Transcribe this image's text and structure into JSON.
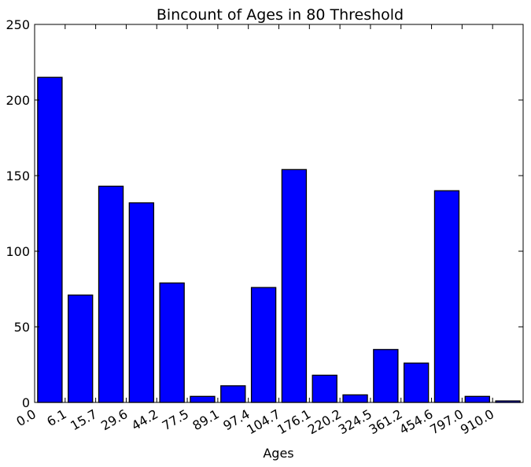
{
  "chart_data": {
    "type": "bar",
    "title": "Bincount of Ages in 80 Threshold",
    "xlabel": "Ages",
    "ylabel": "",
    "ylim": [
      0,
      250
    ],
    "yticks": [
      "0",
      "50",
      "100",
      "150",
      "200",
      "250"
    ],
    "categories": [
      "0.0",
      "6.1",
      "15.7",
      "29.6",
      "44.2",
      "77.5",
      "89.1",
      "97.4",
      "104.7",
      "176.1",
      "220.2",
      "324.5",
      "361.2",
      "454.6",
      "797.0",
      "910.0"
    ],
    "values": [
      215,
      71,
      143,
      132,
      79,
      4,
      11,
      76,
      154,
      18,
      5,
      35,
      26,
      140,
      4,
      1
    ],
    "bar_color": "#0000ff",
    "grid": false,
    "legend": "none"
  }
}
